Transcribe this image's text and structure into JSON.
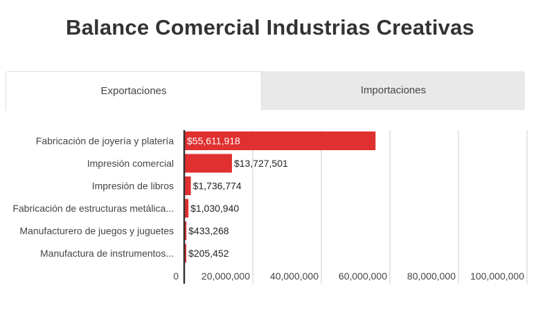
{
  "title": "Balance Comercial Industrias Creativas",
  "tabs": [
    {
      "label": "Exportaciones",
      "active": true
    },
    {
      "label": "Importaciones",
      "active": false
    }
  ],
  "colors": {
    "bar": "#e03030",
    "grid": "#cccccc",
    "axis": "#333333"
  },
  "chart_data": {
    "type": "bar",
    "orientation": "horizontal",
    "categories": [
      "Fabricación de joyería y platería",
      "Impresión comercial",
      "Impresión de libros",
      "Fabricación de estructuras metálica...",
      "Manufacturero de juegos y juguetes",
      "Manufactura de instrumentos..."
    ],
    "values": [
      55611918,
      13727501,
      1736774,
      1030940,
      433268,
      205452
    ],
    "data_labels": [
      "$55,611,918",
      "$13,727,501",
      "$1,736,774",
      "$1,030,940",
      "$433,268",
      "$205,452"
    ],
    "xlim": [
      0,
      100000000
    ],
    "ticks": [
      0,
      20000000,
      40000000,
      60000000,
      80000000,
      100000000
    ],
    "tick_labels": [
      "0",
      "20,000,000",
      "40,000,000",
      "60,000,000",
      "80,000,000",
      "100,000,000"
    ],
    "grid": true
  }
}
